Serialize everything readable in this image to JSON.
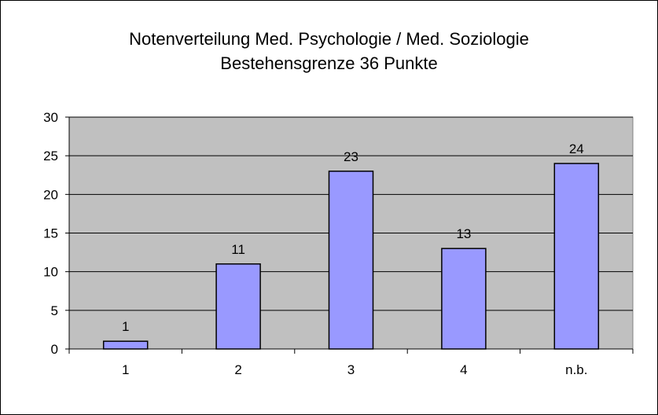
{
  "chart_data": {
    "type": "bar",
    "title": "Notenverteilung Med. Psychologie / Med. Soziologie",
    "subtitle": "Bestehensgrenze 36 Punkte",
    "categories": [
      "1",
      "2",
      "3",
      "4",
      "n.b."
    ],
    "values": [
      1,
      11,
      23,
      13,
      24
    ],
    "data_labels": [
      "1",
      "11",
      "23",
      "13",
      "24"
    ],
    "xlabel": "",
    "ylabel": "",
    "ylim": [
      0,
      30
    ],
    "yticks": [
      "0",
      "5",
      "10",
      "15",
      "20",
      "25",
      "30"
    ],
    "grid": true,
    "legend": "none",
    "colors": {
      "bar_fill": "#9999ff",
      "bar_stroke": "#000000",
      "plot_background": "#c0c0c0",
      "gridline": "#000000"
    }
  }
}
